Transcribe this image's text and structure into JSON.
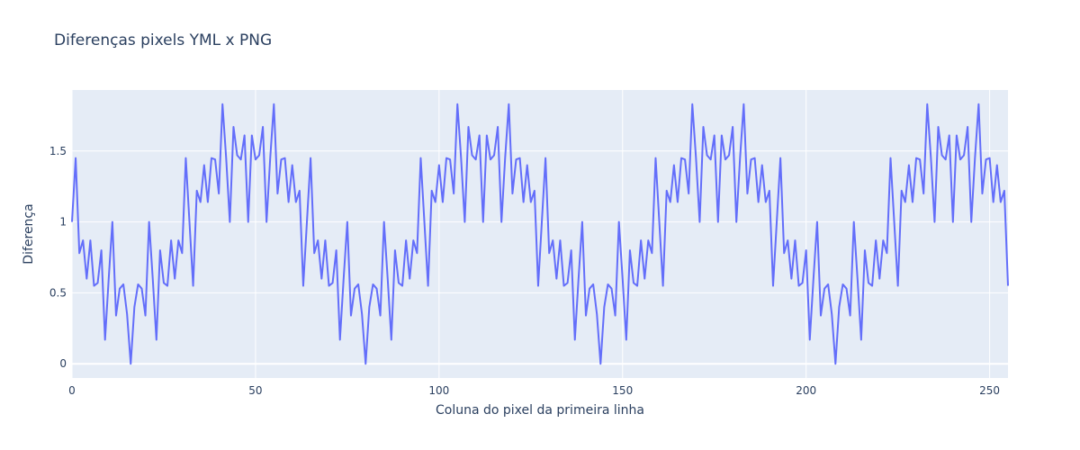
{
  "chart_data": {
    "type": "line",
    "title": "Diferenças pixels YML x PNG",
    "xlabel": "Coluna do pixel da primeira linha",
    "ylabel": "Diferença",
    "xlim": [
      0,
      255
    ],
    "ylim": [
      -0.1,
      1.93
    ],
    "x_ticks": [
      0,
      50,
      100,
      150,
      200,
      250
    ],
    "y_ticks": [
      0,
      0.5,
      1,
      1.5
    ],
    "x_tick_labels": [
      "0",
      "50",
      "100",
      "150",
      "200",
      "250"
    ],
    "y_tick_labels": [
      "0",
      "0.5",
      "1",
      "1.5"
    ],
    "grid": true,
    "background": "#e5ecf6",
    "series": [
      {
        "color": "#636efa",
        "x_start": 0,
        "x_step": 1,
        "values": [
          1.0,
          1.45,
          0.78,
          0.87,
          0.6,
          0.87,
          0.55,
          0.57,
          0.8,
          0.17,
          0.6,
          1.0,
          0.34,
          0.53,
          0.56,
          0.35,
          0.0,
          0.4,
          0.56,
          0.53,
          0.34,
          1.0,
          0.6,
          0.17,
          0.8,
          0.57,
          0.55,
          0.87,
          0.6,
          0.87,
          0.78,
          1.45,
          1.0,
          0.55,
          1.22,
          1.14,
          1.4,
          1.14,
          1.45,
          1.44,
          1.2,
          1.83,
          1.45,
          1.0,
          1.67,
          1.47,
          1.44,
          1.61,
          1.0,
          1.61,
          1.44,
          1.47,
          1.67,
          1.0,
          1.45,
          1.83,
          1.2,
          1.44,
          1.45,
          1.14,
          1.4,
          1.14,
          1.22,
          0.55,
          1.0,
          1.45,
          0.78,
          0.87,
          0.6,
          0.87,
          0.55,
          0.57,
          0.8,
          0.17,
          0.6,
          1.0,
          0.34,
          0.53,
          0.56,
          0.35,
          0.0,
          0.4,
          0.56,
          0.53,
          0.34,
          1.0,
          0.6,
          0.17,
          0.8,
          0.57,
          0.55,
          0.87,
          0.6,
          0.87,
          0.78,
          1.45,
          1.0,
          0.55,
          1.22,
          1.14,
          1.4,
          1.14,
          1.45,
          1.44,
          1.2,
          1.83,
          1.45,
          1.0,
          1.67,
          1.47,
          1.44,
          1.61,
          1.0,
          1.61,
          1.44,
          1.47,
          1.67,
          1.0,
          1.45,
          1.83,
          1.2,
          1.44,
          1.45,
          1.14,
          1.4,
          1.14,
          1.22,
          0.55,
          1.0,
          1.45,
          0.78,
          0.87,
          0.6,
          0.87,
          0.55,
          0.57,
          0.8,
          0.17,
          0.6,
          1.0,
          0.34,
          0.53,
          0.56,
          0.35,
          0.0,
          0.4,
          0.56,
          0.53,
          0.34,
          1.0,
          0.6,
          0.17,
          0.8,
          0.57,
          0.55,
          0.87,
          0.6,
          0.87,
          0.78,
          1.45,
          1.0,
          0.55,
          1.22,
          1.14,
          1.4,
          1.14,
          1.45,
          1.44,
          1.2,
          1.83,
          1.45,
          1.0,
          1.67,
          1.47,
          1.44,
          1.61,
          1.0,
          1.61,
          1.44,
          1.47,
          1.67,
          1.0,
          1.45,
          1.83,
          1.2,
          1.44,
          1.45,
          1.14,
          1.4,
          1.14,
          1.22,
          0.55,
          1.0,
          1.45,
          0.78,
          0.87,
          0.6,
          0.87,
          0.55,
          0.57,
          0.8,
          0.17,
          0.6,
          1.0,
          0.34,
          0.53,
          0.56,
          0.35,
          0.0,
          0.4,
          0.56,
          0.53,
          0.34,
          1.0,
          0.6,
          0.17,
          0.8,
          0.57,
          0.55,
          0.87,
          0.6,
          0.87,
          0.78,
          1.45,
          1.0,
          0.55,
          1.22,
          1.14,
          1.4,
          1.14,
          1.45,
          1.44,
          1.2,
          1.83,
          1.45,
          1.0,
          1.67,
          1.47,
          1.44,
          1.61,
          1.0,
          1.61,
          1.44,
          1.47,
          1.67,
          1.0,
          1.45,
          1.83,
          1.2,
          1.44,
          1.45,
          1.14,
          1.4,
          1.14,
          1.22,
          0.55
        ]
      }
    ]
  }
}
